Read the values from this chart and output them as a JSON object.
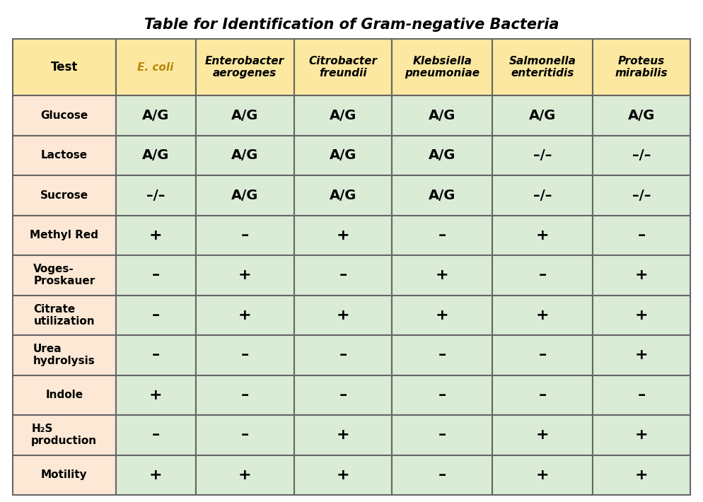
{
  "title": "Table for Identification of Gram-negative Bacteria",
  "col_headers": [
    "Test",
    "E. coli",
    "Enterobacter\naerogenes",
    "Citrobacter\nfreundii",
    "Klebsiella\npneumoniae",
    "Salmonella\nenteritidis",
    "Proteus\nmirabilis"
  ],
  "row_headers": [
    "Glucose",
    "Lactose",
    "Sucrose",
    "Methyl Red",
    "Voges-\nProskauer",
    "Citrate\nutilization",
    "Urea\nhydrolysis",
    "Indole",
    "H₂S\nproduction",
    "Motility"
  ],
  "data": [
    [
      "A/G",
      "A/G",
      "A/G",
      "A/G",
      "A/G",
      "A/G"
    ],
    [
      "A/G",
      "A/G",
      "A/G",
      "A/G",
      "–/–",
      "–/–"
    ],
    [
      "–/–",
      "A/G",
      "A/G",
      "A/G",
      "–/–",
      "–/–"
    ],
    [
      "+",
      "–",
      "+",
      "–",
      "+",
      "–"
    ],
    [
      "–",
      "+",
      "–",
      "+",
      "–",
      "+"
    ],
    [
      "–",
      "+",
      "+",
      "+",
      "+",
      "+"
    ],
    [
      "–",
      "–",
      "–",
      "–",
      "–",
      "+"
    ],
    [
      "+",
      "–",
      "–",
      "–",
      "–",
      "–"
    ],
    [
      "–",
      "–",
      "+",
      "–",
      "+",
      "+"
    ],
    [
      "+",
      "+",
      "+",
      "–",
      "+",
      "+"
    ]
  ],
  "test_col_bg": "#fce8d5",
  "header_bg": "#fce8a0",
  "data_bg": "#daecd6",
  "border_color": "#666666",
  "ecoli_header_color": "#b8860b",
  "other_header_color": "#000000",
  "title_color": "#000000",
  "title_fontsize": 15,
  "header_fontsize": 11,
  "data_fontsize": 14,
  "row_header_fontsize": 11,
  "background_color": "#ffffff"
}
